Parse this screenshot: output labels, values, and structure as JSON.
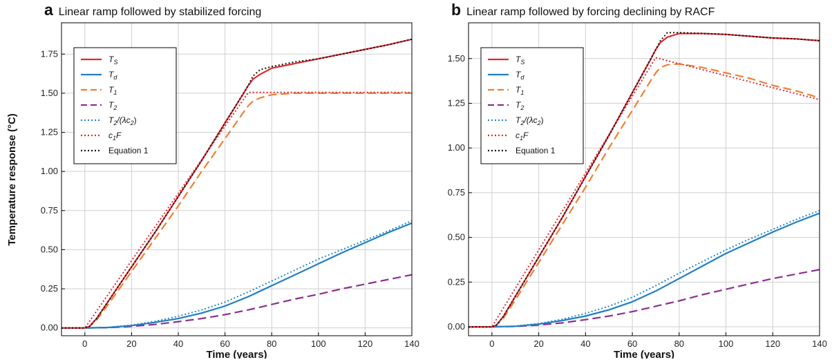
{
  "figure": {
    "ylabel": "Temperature response (°C)"
  },
  "chart_data": [
    {
      "type": "line",
      "panel": "a",
      "title": "Linear ramp followed by stabilized forcing",
      "xlabel": "Time (years)",
      "ylabel": "Temperature response (°C)",
      "xlim": [
        -10,
        140
      ],
      "ylim": [
        -0.05,
        1.95
      ],
      "xticks": [
        0,
        20,
        40,
        60,
        80,
        100,
        120,
        140
      ],
      "yticks": [
        0.0,
        0.25,
        0.5,
        0.75,
        1.0,
        1.25,
        1.5,
        1.75
      ],
      "ytick_labels": [
        "0.00",
        "0.25",
        "0.50",
        "0.75",
        "1.00",
        "1.25",
        "1.50",
        "1.75"
      ],
      "grid": true,
      "legend_position": "top-left",
      "series": [
        {
          "key": "Ts",
          "name": "T_S",
          "color": "#e3262e",
          "style": "solid",
          "x": [
            -10,
            0,
            2,
            5,
            10,
            20,
            30,
            40,
            50,
            60,
            68,
            70,
            72,
            75,
            80,
            90,
            100,
            110,
            120,
            130,
            140
          ],
          "y": [
            0,
            0,
            0.01,
            0.06,
            0.17,
            0.39,
            0.61,
            0.84,
            1.07,
            1.31,
            1.5,
            1.55,
            1.59,
            1.62,
            1.66,
            1.69,
            1.72,
            1.75,
            1.78,
            1.81,
            1.845
          ]
        },
        {
          "key": "Td",
          "name": "T_d",
          "color": "#1f7fc4",
          "style": "solid",
          "x": [
            -10,
            0,
            10,
            20,
            30,
            40,
            50,
            60,
            70,
            80,
            90,
            100,
            110,
            120,
            130,
            140
          ],
          "y": [
            0,
            0,
            0.003,
            0.015,
            0.035,
            0.06,
            0.095,
            0.14,
            0.2,
            0.27,
            0.34,
            0.41,
            0.48,
            0.545,
            0.61,
            0.67
          ]
        },
        {
          "key": "T1",
          "name": "T_1",
          "color": "#f07f30",
          "style": "dash",
          "x": [
            -10,
            0,
            2,
            5,
            10,
            20,
            30,
            40,
            50,
            60,
            68,
            70,
            72,
            75,
            80,
            90,
            100,
            110,
            120,
            130,
            140
          ],
          "y": [
            0,
            0,
            0.01,
            0.05,
            0.15,
            0.36,
            0.57,
            0.78,
            1.0,
            1.21,
            1.38,
            1.42,
            1.45,
            1.47,
            1.49,
            1.5,
            1.5,
            1.5,
            1.5,
            1.5,
            1.5
          ]
        },
        {
          "key": "T2",
          "name": "T_2",
          "color": "#8c2d91",
          "style": "dash",
          "x": [
            -10,
            0,
            10,
            20,
            30,
            40,
            50,
            60,
            70,
            80,
            90,
            100,
            110,
            120,
            130,
            140
          ],
          "y": [
            0,
            0,
            0.002,
            0.01,
            0.022,
            0.04,
            0.06,
            0.085,
            0.115,
            0.15,
            0.185,
            0.215,
            0.25,
            0.28,
            0.31,
            0.34
          ]
        },
        {
          "key": "T2lc2",
          "name": "T_2/(λc_2)",
          "color": "#2487c3",
          "style": "dot",
          "x": [
            -10,
            0,
            10,
            20,
            30,
            40,
            50,
            60,
            70,
            80,
            90,
            100,
            110,
            120,
            130,
            140
          ],
          "y": [
            0,
            0,
            0.004,
            0.018,
            0.042,
            0.075,
            0.115,
            0.165,
            0.23,
            0.3,
            0.37,
            0.44,
            0.5,
            0.56,
            0.62,
            0.685
          ]
        },
        {
          "key": "c1F",
          "name": "c_1F",
          "color": "#e3262e",
          "style": "dot",
          "x": [
            -10,
            0,
            70,
            140
          ],
          "y": [
            0,
            0,
            1.505,
            1.505
          ]
        },
        {
          "key": "eq1",
          "name": "Equation 1",
          "color": "#111111",
          "style": "dot",
          "x": [
            -10,
            0,
            2,
            5,
            10,
            20,
            30,
            40,
            50,
            60,
            70,
            72,
            75,
            80,
            90,
            100,
            110,
            120,
            130,
            140
          ],
          "y": [
            0,
            0,
            0.01,
            0.06,
            0.17,
            0.39,
            0.61,
            0.84,
            1.07,
            1.31,
            1.55,
            1.61,
            1.65,
            1.67,
            1.7,
            1.72,
            1.75,
            1.78,
            1.81,
            1.845
          ]
        }
      ]
    },
    {
      "type": "line",
      "panel": "b",
      "title": "Linear ramp followed by forcing declining by RACF",
      "xlabel": "Time (years)",
      "ylabel": "",
      "xlim": [
        -10,
        140
      ],
      "ylim": [
        -0.05,
        1.7
      ],
      "xticks": [
        0,
        20,
        40,
        60,
        80,
        100,
        120,
        140
      ],
      "yticks": [
        0.0,
        0.25,
        0.5,
        0.75,
        1.0,
        1.25,
        1.5
      ],
      "ytick_labels": [
        "0.00",
        "0.25",
        "0.50",
        "0.75",
        "1.00",
        "1.25",
        "1.50"
      ],
      "grid": true,
      "legend_position": "top-left",
      "series": [
        {
          "key": "Ts",
          "name": "T_S",
          "color": "#e3262e",
          "style": "solid",
          "x": [
            -10,
            0,
            2,
            5,
            10,
            20,
            30,
            40,
            50,
            60,
            68,
            70,
            72,
            75,
            80,
            90,
            100,
            110,
            120,
            130,
            140
          ],
          "y": [
            0,
            0,
            0.01,
            0.06,
            0.17,
            0.39,
            0.61,
            0.84,
            1.07,
            1.31,
            1.5,
            1.55,
            1.59,
            1.62,
            1.64,
            1.64,
            1.635,
            1.625,
            1.615,
            1.61,
            1.6
          ]
        },
        {
          "key": "Td",
          "name": "T_d",
          "color": "#1f7fc4",
          "style": "solid",
          "x": [
            -10,
            0,
            10,
            20,
            30,
            40,
            50,
            60,
            70,
            80,
            90,
            100,
            110,
            120,
            130,
            140
          ],
          "y": [
            0,
            0,
            0.003,
            0.015,
            0.035,
            0.06,
            0.095,
            0.14,
            0.2,
            0.27,
            0.34,
            0.41,
            0.47,
            0.53,
            0.585,
            0.635
          ]
        },
        {
          "key": "T1",
          "name": "T_1",
          "color": "#f07f30",
          "style": "dash",
          "x": [
            -10,
            0,
            2,
            5,
            10,
            20,
            30,
            40,
            50,
            60,
            68,
            70,
            72,
            75,
            80,
            90,
            100,
            110,
            120,
            130,
            140
          ],
          "y": [
            0,
            0,
            0.01,
            0.05,
            0.15,
            0.36,
            0.57,
            0.78,
            1.0,
            1.21,
            1.38,
            1.42,
            1.45,
            1.465,
            1.47,
            1.45,
            1.42,
            1.39,
            1.35,
            1.32,
            1.28
          ]
        },
        {
          "key": "T2",
          "name": "T_2",
          "color": "#8c2d91",
          "style": "dash",
          "x": [
            -10,
            0,
            10,
            20,
            30,
            40,
            50,
            60,
            70,
            80,
            90,
            100,
            110,
            120,
            130,
            140
          ],
          "y": [
            0,
            0,
            0.002,
            0.01,
            0.022,
            0.04,
            0.06,
            0.085,
            0.115,
            0.145,
            0.18,
            0.21,
            0.24,
            0.27,
            0.295,
            0.32
          ]
        },
        {
          "key": "T2lc2",
          "name": "T_2/(λc_2)",
          "color": "#2487c3",
          "style": "dot",
          "x": [
            -10,
            0,
            10,
            20,
            30,
            40,
            50,
            60,
            70,
            80,
            90,
            100,
            110,
            120,
            130,
            140
          ],
          "y": [
            0,
            0,
            0.004,
            0.018,
            0.042,
            0.075,
            0.115,
            0.165,
            0.23,
            0.3,
            0.365,
            0.43,
            0.49,
            0.545,
            0.6,
            0.65
          ]
        },
        {
          "key": "c1F",
          "name": "c_1F",
          "color": "#e3262e",
          "style": "dot",
          "x": [
            -10,
            0,
            70,
            140
          ],
          "y": [
            0,
            0,
            1.505,
            1.27
          ]
        },
        {
          "key": "eq1",
          "name": "Equation 1",
          "color": "#111111",
          "style": "dot",
          "x": [
            -10,
            0,
            2,
            5,
            10,
            20,
            30,
            40,
            50,
            60,
            70,
            72,
            75,
            80,
            90,
            100,
            110,
            120,
            130,
            140
          ],
          "y": [
            0,
            0,
            0.01,
            0.06,
            0.17,
            0.39,
            0.61,
            0.84,
            1.07,
            1.31,
            1.55,
            1.6,
            1.645,
            1.645,
            1.64,
            1.635,
            1.625,
            1.615,
            1.61,
            1.6
          ]
        }
      ]
    }
  ]
}
